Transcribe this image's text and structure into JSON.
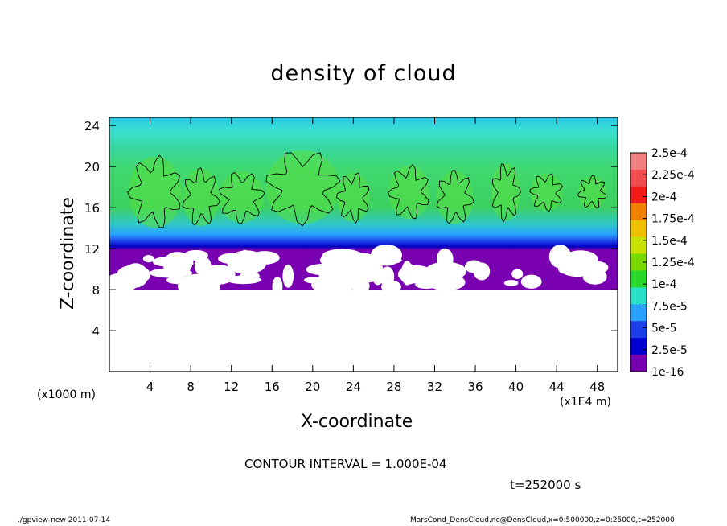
{
  "chart_data": {
    "type": "heatmap",
    "title": "density of cloud",
    "xlabel": "X-coordinate",
    "ylabel": "Z-coordinate",
    "x_unit_left": "(x1000 m)",
    "x_unit_right": "(x1E4 m)",
    "xlim": [
      0,
      50
    ],
    "ylim": [
      0,
      24.8
    ],
    "x_ticks": [
      4,
      8,
      12,
      16,
      20,
      24,
      28,
      32,
      36,
      40,
      44,
      48
    ],
    "y_ticks": [
      4,
      8,
      12,
      16,
      20,
      24
    ],
    "data_region": {
      "x_range": [
        0,
        50
      ],
      "z_range": [
        8,
        24.8
      ]
    },
    "colorbar": {
      "labels": [
        "2.5e-4",
        "2.25e-4",
        "2e-4",
        "1.75e-4",
        "1.5e-4",
        "1.25e-4",
        "1e-4",
        "7.5e-5",
        "5e-5",
        "2.5e-5",
        "1e-16"
      ],
      "colors": [
        "#f08080",
        "#f04c4c",
        "#f01c1c",
        "#f08000",
        "#f0c000",
        "#c8e000",
        "#78d800",
        "#28d828",
        "#28e0c8",
        "#28a0ff",
        "#1c40e8",
        "#0000d0",
        "#7800b0"
      ]
    },
    "bands": [
      {
        "z_from": 8.0,
        "z_to": 12.0,
        "value": "1e-16",
        "note": "low layer, mixed with white gaps"
      },
      {
        "z_from": 12.0,
        "z_to": 13.0,
        "value": "2.5e-5"
      },
      {
        "z_from": 13.0,
        "z_to": 14.5,
        "value": "7.5e-5"
      },
      {
        "z_from": 14.5,
        "z_to": 21.0,
        "value": "1e-4",
        "note": "cloud cores"
      },
      {
        "z_from": 21.0,
        "z_to": 24.8,
        "value": "7.5e-5"
      }
    ],
    "contour_interval": "CONTOUR INTERVAL = 1.000E-04",
    "time": "t=252000 s"
  },
  "footer": {
    "left": "./gpview-new  2011-07-14",
    "right": "MarsCond_DensCloud.nc@DensCloud,x=0:500000,z=0:25000,t=252000"
  }
}
